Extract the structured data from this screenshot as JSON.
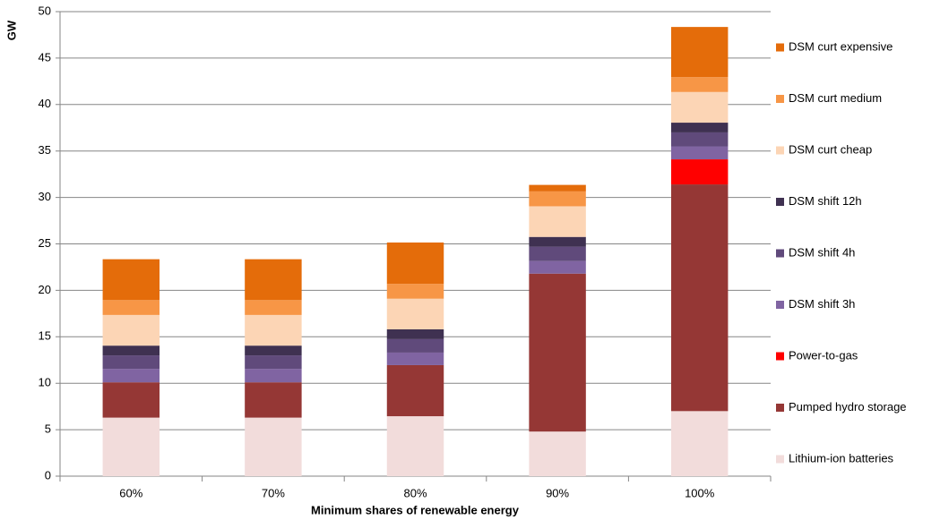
{
  "chart_data": {
    "type": "stacked-bar",
    "y_label": "GW",
    "x_label": "Minimum shares of renewable energy",
    "categories": [
      "60%",
      "70%",
      "80%",
      "90%",
      "100%"
    ],
    "series": [
      {
        "name": "Lithium-ion batteries",
        "color": "#f2dcdb",
        "values": [
          6.3,
          6.3,
          6.45,
          4.8,
          7.0
        ]
      },
      {
        "name": "Pumped hydro storage",
        "color": "#953735",
        "values": [
          3.8,
          3.8,
          5.5,
          17.0,
          24.4
        ]
      },
      {
        "name": "Power-to-gas",
        "color": "#ff0000",
        "values": [
          0,
          0,
          0,
          0,
          2.7
        ]
      },
      {
        "name": "DSM shift 3h",
        "color": "#8064a2",
        "values": [
          1.45,
          1.45,
          1.35,
          1.35,
          1.4
        ]
      },
      {
        "name": "DSM shift 4h",
        "color": "#604a7b",
        "values": [
          1.45,
          1.45,
          1.45,
          1.55,
          1.5
        ]
      },
      {
        "name": "DSM shift 12h",
        "color": "#3f3151",
        "values": [
          1.05,
          1.05,
          1.05,
          1.05,
          1.05
        ]
      },
      {
        "name": "DSM curt cheap",
        "color": "#fcd5b5",
        "values": [
          3.3,
          3.3,
          3.3,
          3.3,
          3.3
        ]
      },
      {
        "name": "DSM curt medium",
        "color": "#f79646",
        "values": [
          1.6,
          1.6,
          1.6,
          1.6,
          1.6
        ]
      },
      {
        "name": "DSM curt expensive",
        "color": "#e46c0a",
        "values": [
          4.4,
          4.4,
          4.45,
          0.7,
          5.4
        ]
      }
    ],
    "ylim": [
      0,
      50
    ],
    "yticks": [
      0,
      5,
      10,
      15,
      20,
      25,
      30,
      35,
      40,
      45,
      50
    ],
    "grid": true,
    "legend": "right"
  }
}
